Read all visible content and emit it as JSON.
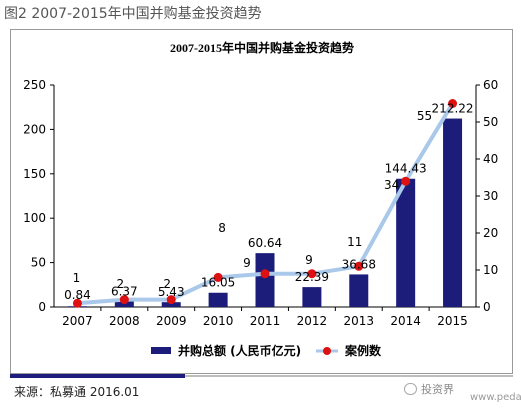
{
  "figure_caption": "图2  2007-2015年中国并购基金投资趋势",
  "source_text": "来源：私募通  2016.01",
  "watermark_text": "www.pedata.cn",
  "watermark_brand": "投资界",
  "colors": {
    "bar": "#1c1c7a",
    "line": "#a9c8ea",
    "marker": "#dd1111"
  },
  "chart_data": {
    "type": "bar",
    "title": "2007-2015年中国并购基金投资趋势",
    "categories": [
      "2007",
      "2008",
      "2009",
      "2010",
      "2011",
      "2012",
      "2013",
      "2014",
      "2015"
    ],
    "series": [
      {
        "name": "并购总额 (人民币亿元)",
        "type": "bar",
        "axis": "left",
        "values": [
          0.84,
          6.37,
          5.43,
          16.05,
          60.64,
          22.39,
          36.68,
          144.43,
          212.22
        ],
        "labels": [
          "0.84",
          "6.37",
          "5.43",
          "16.05",
          "60.64",
          "22.39",
          "36.68",
          "144.43",
          "212.22"
        ]
      },
      {
        "name": "案例数",
        "type": "line",
        "axis": "right",
        "values": [
          1,
          2,
          2,
          8,
          9,
          9,
          11,
          34,
          55
        ],
        "labels": [
          "1",
          "2",
          "2",
          "8",
          "9",
          "9",
          "11",
          "34",
          "55"
        ]
      }
    ],
    "y_left": {
      "range": [
        0,
        250
      ],
      "ticks": [
        "0",
        "50",
        "100",
        "150",
        "200",
        "250"
      ]
    },
    "y_right": {
      "range": [
        0,
        60
      ],
      "ticks": [
        "0",
        "10",
        "20",
        "30",
        "40",
        "50",
        "60"
      ]
    },
    "grid": false,
    "legend_position": "bottom"
  }
}
